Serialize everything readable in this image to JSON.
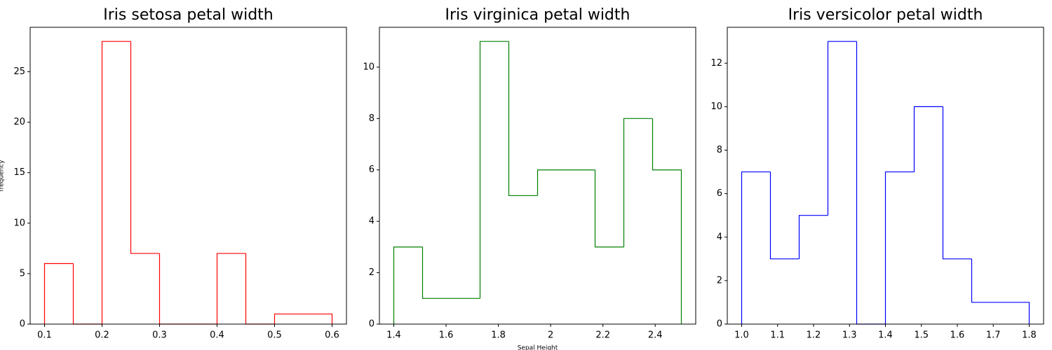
{
  "chart_data": [
    {
      "type": "histogram",
      "title": "Iris setosa petal width",
      "y_label": "frequency",
      "color": "#ff0000",
      "bins": [
        0.1,
        0.15,
        0.2,
        0.25,
        0.3,
        0.35,
        0.4,
        0.45,
        0.5,
        0.55,
        0.6
      ],
      "values": [
        6,
        0,
        28,
        7,
        0,
        0,
        7,
        0,
        1,
        1
      ],
      "xlim": [
        0.075,
        0.625
      ],
      "ylim": [
        0,
        29.4
      ],
      "xticks": [
        0.1,
        0.2,
        0.3,
        0.4,
        0.5,
        0.6
      ],
      "yticks": [
        0,
        5,
        10,
        15,
        20,
        25
      ]
    },
    {
      "type": "histogram",
      "title": "Iris virginica petal width",
      "x_label": "Sepal Height",
      "color": "#008000",
      "bins": [
        1.4,
        1.51,
        1.62,
        1.73,
        1.84,
        1.95,
        2.06,
        2.17,
        2.28,
        2.39,
        2.5
      ],
      "values": [
        3,
        1,
        1,
        11,
        5,
        6,
        6,
        3,
        8,
        6
      ],
      "xlim": [
        1.345,
        2.555
      ],
      "ylim": [
        0,
        11.55
      ],
      "xticks": [
        1.4,
        1.6,
        1.8,
        2.0,
        2.2,
        2.4
      ],
      "yticks": [
        0,
        2,
        4,
        6,
        8,
        10
      ]
    },
    {
      "type": "histogram",
      "title": "Iris versicolor petal width",
      "color": "#0000ff",
      "bins": [
        1.0,
        1.08,
        1.16,
        1.24,
        1.32,
        1.4,
        1.48,
        1.56,
        1.64,
        1.72,
        1.8
      ],
      "values": [
        7,
        3,
        5,
        13,
        0,
        7,
        10,
        3,
        1,
        1
      ],
      "xlim": [
        0.96,
        1.84
      ],
      "ylim": [
        0,
        13.65
      ],
      "xticks": [
        {
          "value": 1,
          "label": "1.0"
        },
        1.1,
        1.2,
        1.3,
        1.4,
        1.5,
        1.6,
        1.7,
        1.8
      ],
      "yticks": [
        0,
        2,
        4,
        6,
        8,
        10,
        12
      ]
    }
  ]
}
